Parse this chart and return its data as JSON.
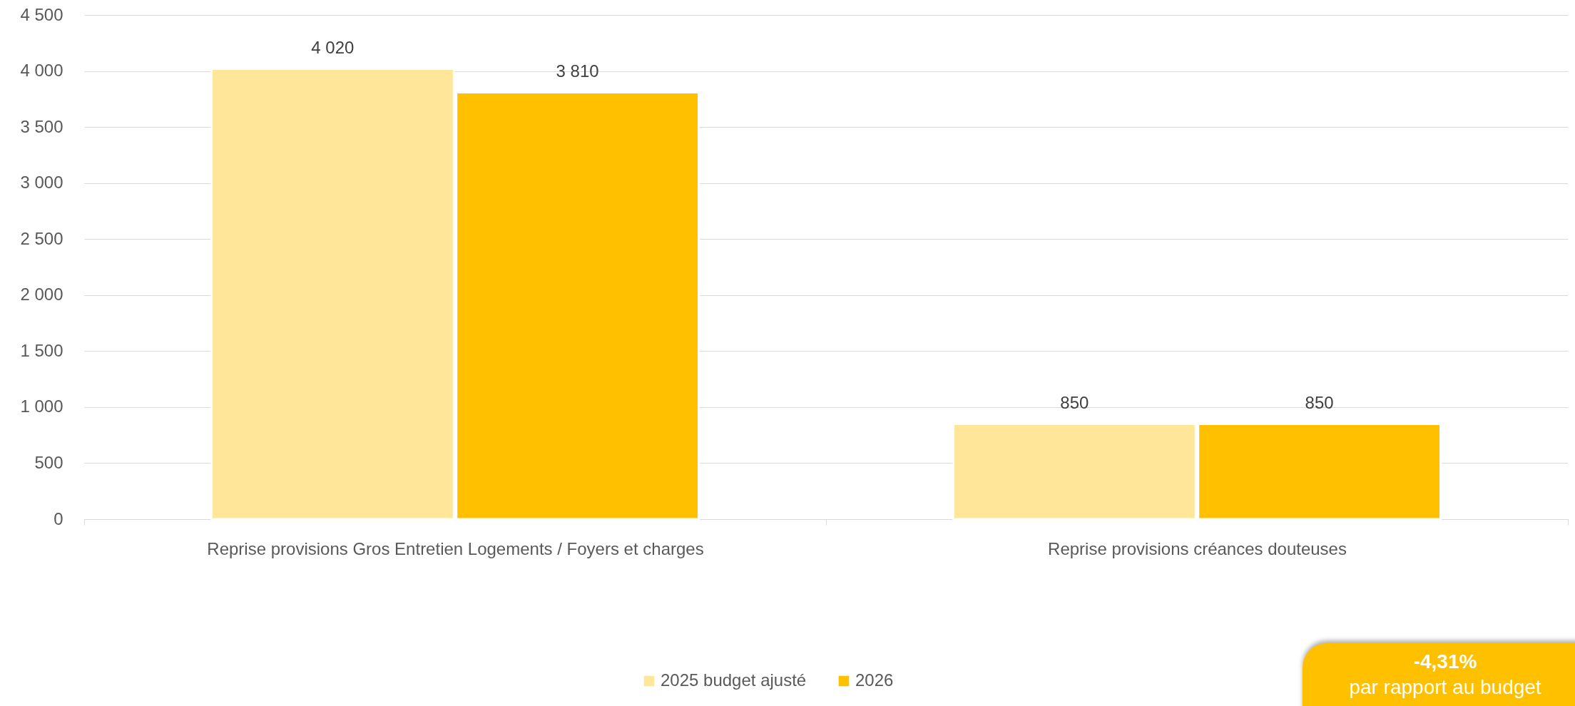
{
  "chart_data": {
    "type": "bar",
    "categories": [
      "Reprise provisions Gros Entretien Logements / Foyers et charges",
      "Reprise provisions créances douteuses"
    ],
    "series": [
      {
        "name": "2025 budget ajusté",
        "color": "#ffe699",
        "values": [
          4020,
          850
        ],
        "value_labels": [
          "4 020",
          "850"
        ]
      },
      {
        "name": "2026",
        "color": "#ffc000",
        "values": [
          3810,
          850
        ],
        "value_labels": [
          "3 810",
          "850"
        ]
      }
    ],
    "ylim": [
      0,
      4500
    ],
    "yticks": [
      {
        "value": 0,
        "label": "0"
      },
      {
        "value": 500,
        "label": "500"
      },
      {
        "value": 1000,
        "label": "1 000"
      },
      {
        "value": 1500,
        "label": "1 500"
      },
      {
        "value": 2000,
        "label": "2 000"
      },
      {
        "value": 2500,
        "label": "2 500"
      },
      {
        "value": 3000,
        "label": "3 000"
      },
      {
        "value": 3500,
        "label": "3 500"
      },
      {
        "value": 4000,
        "label": "4 000"
      },
      {
        "value": 4500,
        "label": "4 500"
      }
    ],
    "grid": "y",
    "legend": "bottom",
    "annotations": [
      "-4,31%",
      "par rapport au budget"
    ]
  }
}
